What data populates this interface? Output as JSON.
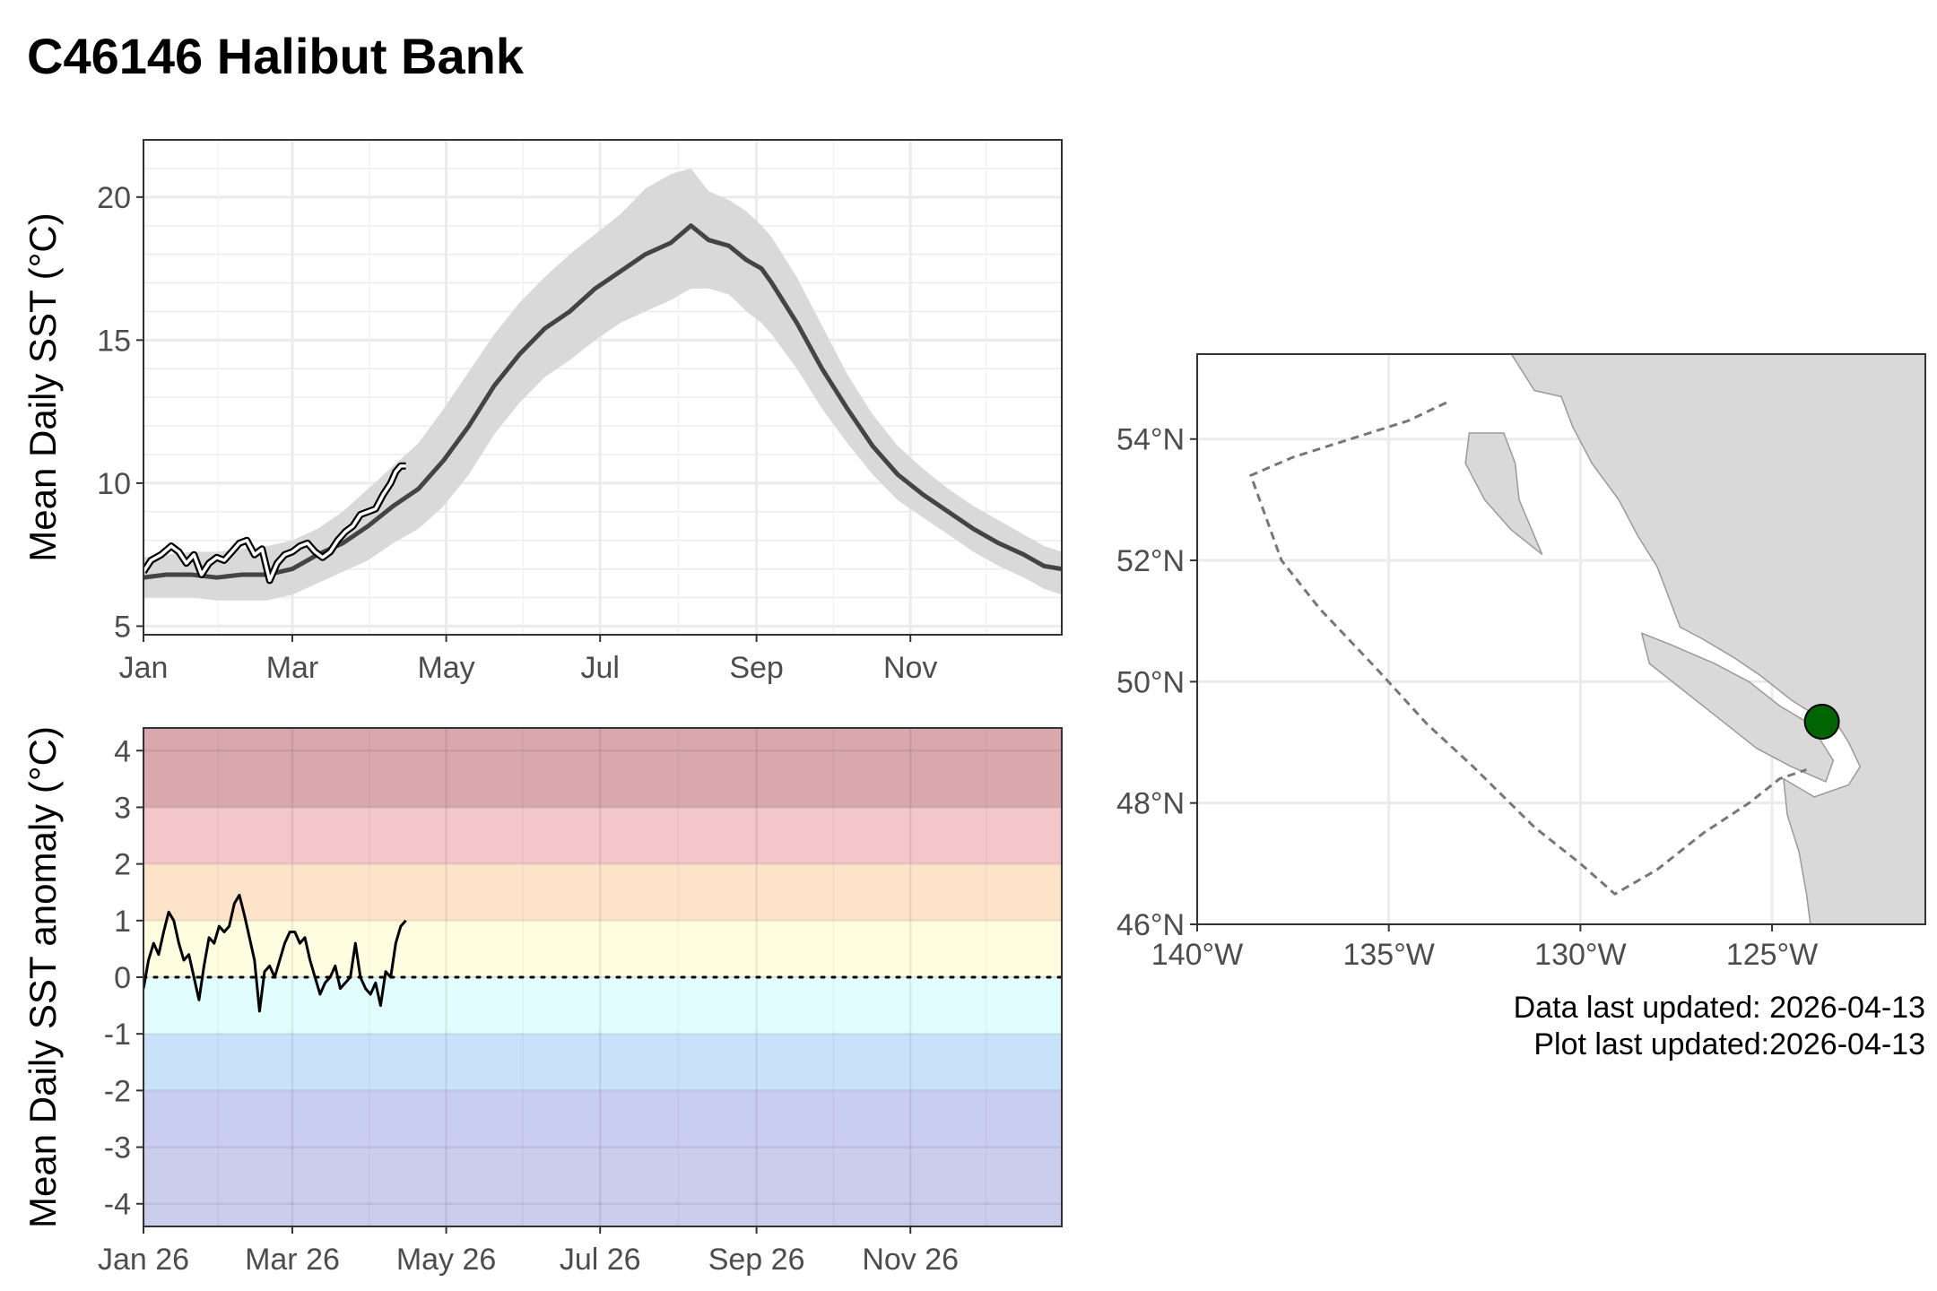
{
  "title": "C46146 Halibut Bank",
  "footer": {
    "data_updated": "Data last updated: 2026-04-13",
    "plot_updated": "Plot last updated:2026-04-13"
  },
  "colors": {
    "climatology_line": "#444444",
    "climatology_band": "#d9d9d9",
    "current_year_line": "#000000",
    "land": "#d9d9d9",
    "station": "#006400"
  },
  "chart_data": [
    {
      "type": "line",
      "name": "sst-climatology",
      "ylabel": "Mean Daily SST (°C)",
      "xlabel": "",
      "x_unit": "day-of-year",
      "xlim": [
        1,
        365
      ],
      "ylim": [
        4.7,
        22
      ],
      "yticks": [
        5,
        10,
        15,
        20
      ],
      "xticks": [
        {
          "label": "Jan",
          "day": 1
        },
        {
          "label": "Mar",
          "day": 60
        },
        {
          "label": "May",
          "day": 121
        },
        {
          "label": "Jul",
          "day": 182
        },
        {
          "label": "Sep",
          "day": 244
        },
        {
          "label": "Nov",
          "day": 305
        }
      ],
      "grid": true,
      "series": [
        {
          "role": "climatology-mean",
          "x": [
            1,
            10,
            20,
            30,
            40,
            50,
            60,
            70,
            80,
            90,
            100,
            110,
            120,
            130,
            140,
            150,
            160,
            170,
            180,
            190,
            200,
            210,
            218,
            225,
            233,
            240,
            246,
            250,
            260,
            270,
            280,
            290,
            300,
            310,
            320,
            330,
            340,
            350,
            358,
            365
          ],
          "y": [
            6.7,
            6.8,
            6.8,
            6.7,
            6.8,
            6.8,
            7.0,
            7.5,
            7.9,
            8.5,
            9.2,
            9.8,
            10.8,
            12.0,
            13.4,
            14.5,
            15.4,
            16.0,
            16.8,
            17.4,
            18.0,
            18.4,
            19.0,
            18.5,
            18.3,
            17.8,
            17.5,
            17.0,
            15.6,
            14.0,
            12.6,
            11.3,
            10.3,
            9.6,
            9.0,
            8.4,
            7.9,
            7.5,
            7.1,
            7.0
          ]
        },
        {
          "role": "climatology-upper",
          "x": [
            1,
            10,
            20,
            30,
            40,
            50,
            60,
            70,
            80,
            90,
            100,
            110,
            120,
            130,
            140,
            150,
            160,
            170,
            180,
            190,
            200,
            210,
            218,
            225,
            233,
            240,
            246,
            250,
            260,
            270,
            280,
            290,
            300,
            310,
            320,
            330,
            340,
            350,
            358,
            365
          ],
          "y": [
            7.4,
            7.5,
            7.6,
            7.6,
            7.7,
            7.8,
            8.0,
            8.4,
            9.0,
            9.8,
            10.6,
            11.4,
            12.6,
            13.9,
            15.2,
            16.3,
            17.2,
            18.0,
            18.7,
            19.4,
            20.3,
            20.8,
            21.0,
            20.2,
            19.9,
            19.5,
            19.0,
            18.6,
            17.2,
            15.5,
            13.8,
            12.4,
            11.3,
            10.5,
            9.8,
            9.2,
            8.7,
            8.2,
            7.8,
            7.6
          ]
        },
        {
          "role": "climatology-lower",
          "x": [
            1,
            10,
            20,
            30,
            40,
            50,
            60,
            70,
            80,
            90,
            100,
            110,
            120,
            130,
            140,
            150,
            160,
            170,
            180,
            190,
            200,
            210,
            218,
            225,
            233,
            240,
            246,
            250,
            260,
            270,
            280,
            290,
            300,
            310,
            320,
            330,
            340,
            350,
            358,
            365
          ],
          "y": [
            6.0,
            6.0,
            6.0,
            5.9,
            5.9,
            5.9,
            6.1,
            6.5,
            6.9,
            7.3,
            7.9,
            8.4,
            9.2,
            10.3,
            11.7,
            12.8,
            13.7,
            14.3,
            15.0,
            15.6,
            16.0,
            16.4,
            16.8,
            16.8,
            16.6,
            16.0,
            15.6,
            15.2,
            14.0,
            12.6,
            11.4,
            10.3,
            9.4,
            8.8,
            8.2,
            7.6,
            7.1,
            6.7,
            6.3,
            6.1
          ]
        },
        {
          "role": "current-year",
          "x": [
            1,
            4,
            8,
            12,
            15,
            18,
            21,
            24,
            27,
            30,
            33,
            36,
            39,
            42,
            45,
            48,
            51,
            54,
            57,
            60,
            63,
            66,
            69,
            72,
            75,
            78,
            81,
            84,
            87,
            90,
            93,
            96,
            99,
            101,
            103,
            105
          ],
          "y": [
            6.9,
            7.3,
            7.5,
            7.8,
            7.6,
            7.2,
            7.5,
            6.8,
            7.2,
            7.4,
            7.3,
            7.6,
            7.9,
            8.0,
            7.5,
            7.7,
            6.6,
            7.2,
            7.5,
            7.6,
            7.8,
            7.9,
            7.6,
            7.4,
            7.6,
            8.0,
            8.3,
            8.5,
            8.9,
            9.0,
            9.1,
            9.6,
            10.0,
            10.4,
            10.6,
            10.6
          ]
        }
      ]
    },
    {
      "type": "line",
      "name": "sst-anomaly",
      "ylabel": "Mean Daily SST anomaly (°C)",
      "xlabel": "",
      "x_unit": "day-of-year",
      "xlim": [
        1,
        365
      ],
      "ylim": [
        -4.4,
        4.4
      ],
      "yticks": [
        4,
        3,
        2,
        1,
        0,
        -1,
        -2,
        -3,
        -4
      ],
      "ytick_labels": [
        "4",
        "3",
        "2",
        "1",
        "0",
        "-1",
        "-2",
        "-3",
        "-4"
      ],
      "xticks": [
        {
          "label": "Jan 26",
          "day": 1
        },
        {
          "label": "Mar 26",
          "day": 60
        },
        {
          "label": "May 26",
          "day": 121
        },
        {
          "label": "Jul 26",
          "day": 182
        },
        {
          "label": "Sep 26",
          "day": 244
        },
        {
          "label": "Nov 26",
          "day": 305
        }
      ],
      "bands": [
        {
          "from": 3,
          "to": 4.4,
          "color": "#d8a8ae"
        },
        {
          "from": 2,
          "to": 3,
          "color": "#f2c6ca"
        },
        {
          "from": 1,
          "to": 2,
          "color": "#fde3c8"
        },
        {
          "from": 0,
          "to": 1,
          "color": "#fffde0"
        },
        {
          "from": -1,
          "to": 0,
          "color": "#e2fdfd"
        },
        {
          "from": -2,
          "to": -1,
          "color": "#c9e2fa"
        },
        {
          "from": -3,
          "to": -2,
          "color": "#cacdf2"
        },
        {
          "from": -4.4,
          "to": -3,
          "color": "#ccccec"
        }
      ],
      "reference_line": 0,
      "grid": true,
      "series": [
        {
          "role": "anomaly",
          "x": [
            1,
            3,
            5,
            7,
            9,
            11,
            13,
            15,
            17,
            19,
            21,
            23,
            25,
            27,
            29,
            31,
            33,
            35,
            37,
            39,
            41,
            43,
            45,
            47,
            49,
            51,
            53,
            55,
            57,
            59,
            61,
            63,
            65,
            67,
            69,
            71,
            73,
            75,
            77,
            79,
            81,
            83,
            85,
            87,
            89,
            91,
            93,
            95,
            97,
            99,
            101,
            103,
            105
          ],
          "y": [
            -0.2,
            0.3,
            0.6,
            0.4,
            0.8,
            1.15,
            1.0,
            0.6,
            0.3,
            0.4,
            0.0,
            -0.4,
            0.2,
            0.7,
            0.6,
            0.9,
            0.8,
            0.9,
            1.3,
            1.45,
            1.1,
            0.7,
            0.3,
            -0.6,
            0.1,
            0.2,
            0.0,
            0.3,
            0.6,
            0.8,
            0.8,
            0.6,
            0.7,
            0.3,
            0.0,
            -0.3,
            -0.1,
            0.0,
            0.2,
            -0.2,
            -0.1,
            0.0,
            0.6,
            0.0,
            -0.2,
            -0.3,
            -0.1,
            -0.5,
            0.1,
            0.0,
            0.6,
            0.9,
            1.0
          ]
        }
      ]
    },
    {
      "type": "map",
      "name": "station-location-map",
      "xlim": [
        -140,
        -121
      ],
      "ylim": [
        46,
        55.4
      ],
      "xticks": [
        {
          "label": "140°W",
          "value": -140
        },
        {
          "label": "135°W",
          "value": -135
        },
        {
          "label": "130°W",
          "value": -130
        },
        {
          "label": "125°W",
          "value": -125
        }
      ],
      "yticks": [
        {
          "label": "54°N",
          "value": 54
        },
        {
          "label": "52°N",
          "value": 52
        },
        {
          "label": "50°N",
          "value": 50
        },
        {
          "label": "48°N",
          "value": 48
        },
        {
          "label": "46°N",
          "value": 46
        }
      ],
      "station": {
        "lon": -123.7,
        "lat": 49.34
      },
      "boundary": [
        [
          -133.5,
          54.6
        ],
        [
          -134.5,
          54.3
        ],
        [
          -136.0,
          54.0
        ],
        [
          -137.5,
          53.7
        ],
        [
          -138.6,
          53.4
        ],
        [
          -137.8,
          52.0
        ],
        [
          -136.8,
          51.2
        ],
        [
          -135.3,
          50.2
        ],
        [
          -134.0,
          49.3
        ],
        [
          -132.8,
          48.6
        ],
        [
          -131.2,
          47.6
        ],
        [
          -130.0,
          47.0
        ],
        [
          -129.1,
          46.5
        ],
        [
          -128.0,
          46.9
        ],
        [
          -126.8,
          47.5
        ],
        [
          -125.6,
          48.0
        ],
        [
          -124.8,
          48.4
        ],
        [
          -124.1,
          48.55
        ]
      ],
      "coast": [
        [
          -131.8,
          55.4
        ],
        [
          -131.2,
          54.8
        ],
        [
          -130.5,
          54.7
        ],
        [
          -130.2,
          54.2
        ],
        [
          -129.7,
          53.6
        ],
        [
          -129.0,
          53.0
        ],
        [
          -128.5,
          52.4
        ],
        [
          -128.0,
          51.9
        ],
        [
          -127.7,
          51.4
        ],
        [
          -127.4,
          50.9
        ],
        [
          -126.8,
          50.7
        ],
        [
          -126.0,
          50.4
        ],
        [
          -125.3,
          50.1
        ],
        [
          -124.9,
          49.9
        ],
        [
          -124.5,
          49.7
        ],
        [
          -124.0,
          49.5
        ],
        [
          -123.3,
          49.3
        ],
        [
          -123.0,
          49.0
        ],
        [
          -122.7,
          48.6
        ],
        [
          -123.0,
          48.3
        ],
        [
          -123.9,
          48.1
        ],
        [
          -124.7,
          48.4
        ],
        [
          -124.6,
          47.8
        ],
        [
          -124.3,
          47.2
        ],
        [
          -124.1,
          46.5
        ],
        [
          -124.0,
          46.0
        ]
      ],
      "islands": [
        [
          [
            -132.9,
            54.1
          ],
          [
            -132.0,
            54.1
          ],
          [
            -131.7,
            53.6
          ],
          [
            -131.6,
            53.0
          ],
          [
            -131.2,
            52.4
          ],
          [
            -131.0,
            52.1
          ],
          [
            -131.8,
            52.5
          ],
          [
            -132.5,
            53.0
          ],
          [
            -133.0,
            53.6
          ],
          [
            -132.9,
            54.1
          ]
        ],
        [
          [
            -128.4,
            50.8
          ],
          [
            -127.6,
            50.6
          ],
          [
            -126.5,
            50.3
          ],
          [
            -125.6,
            50.0
          ],
          [
            -124.8,
            49.6
          ],
          [
            -124.0,
            49.3
          ],
          [
            -123.4,
            48.7
          ],
          [
            -123.6,
            48.35
          ],
          [
            -124.5,
            48.6
          ],
          [
            -125.4,
            48.9
          ],
          [
            -126.2,
            49.3
          ],
          [
            -127.2,
            49.8
          ],
          [
            -128.2,
            50.3
          ],
          [
            -128.4,
            50.8
          ]
        ]
      ]
    }
  ]
}
